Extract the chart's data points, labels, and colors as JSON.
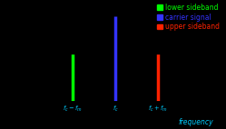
{
  "background_color": "#000000",
  "text_color_tick": "#ffaa00",
  "xlabel": "frequency",
  "xlabel_color": "#00ccff",
  "lines": [
    {
      "x": -1.0,
      "height": 0.55,
      "color": "#00ff00",
      "label": "lower sideband"
    },
    {
      "x": 0.0,
      "height": 1.0,
      "color": "#3333ff",
      "label": "carrier signal"
    },
    {
      "x": 1.0,
      "height": 0.55,
      "color": "#ff2200",
      "label": "upper sideband"
    }
  ],
  "xtick_labels": [
    {
      "x": -1.8,
      "label": "f_c"
    },
    {
      "x": -1.2,
      "label": "f_m"
    },
    {
      "x": 0.0,
      "label": "f_c"
    },
    {
      "x": 1.0,
      "label": "f_c + f_m"
    }
  ],
  "legend_labels": [
    "lower sideband",
    "carrier signal",
    "upper sideband"
  ],
  "legend_colors": [
    "#00ff00",
    "#3333ff",
    "#ff2200"
  ],
  "ylim": [
    0,
    1.15
  ],
  "xlim": [
    -2.5,
    2.5
  ],
  "line_width": 2.5,
  "legend_fontsize": 5.5,
  "tick_fontsize": 4.8,
  "xlabel_fontsize": 5.5
}
